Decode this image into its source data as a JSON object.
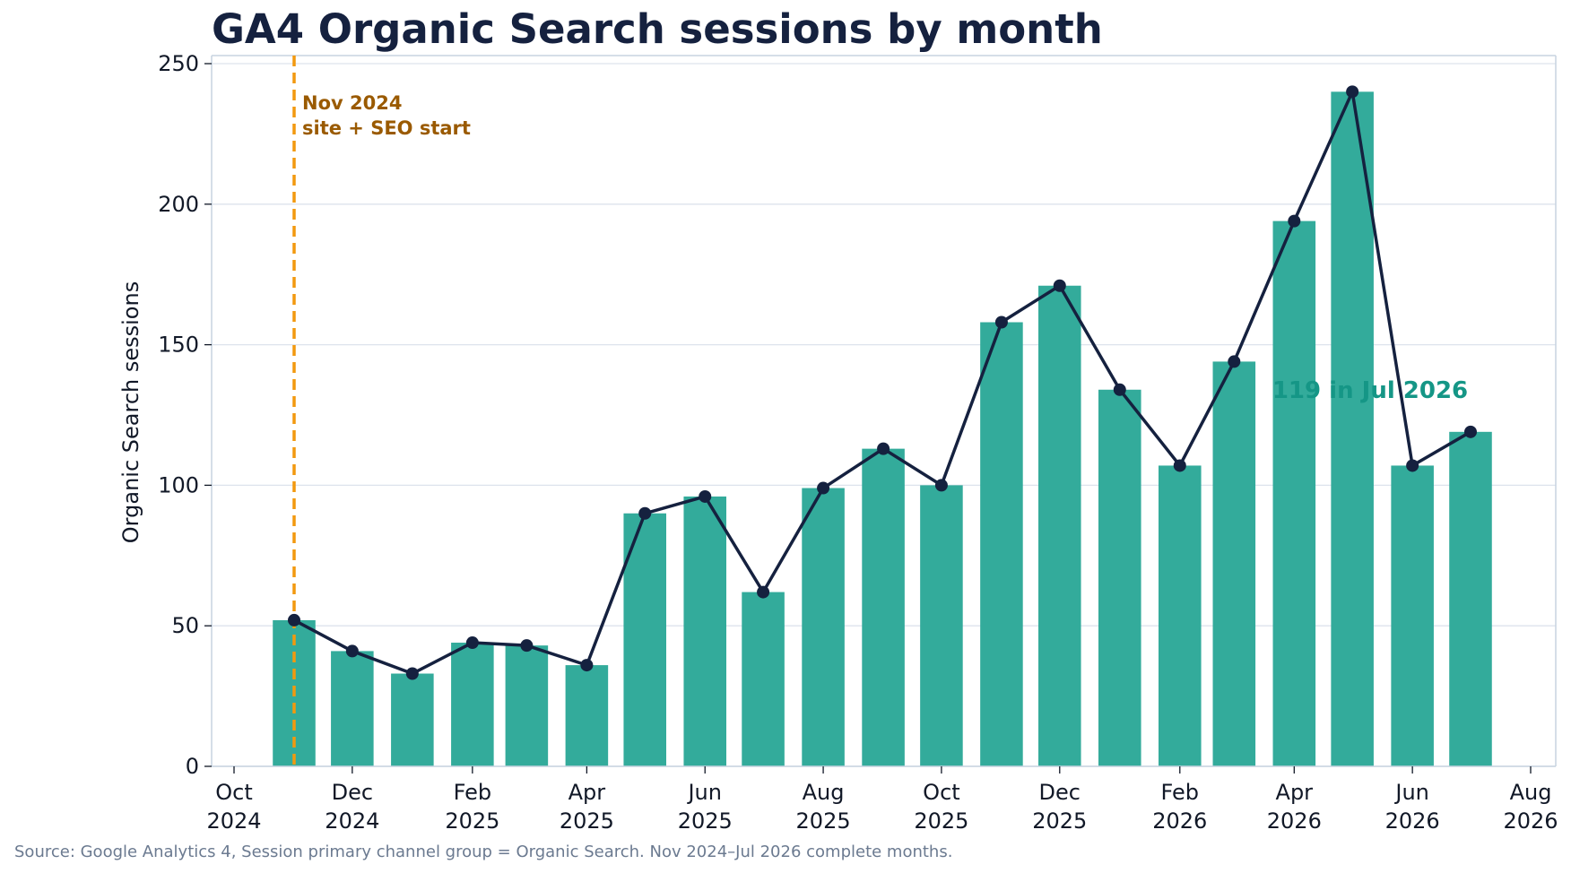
{
  "title": "GA4 Organic Search sessions by month",
  "source_note": "Source: Google Analytics 4, Session primary channel group = Organic Search. Nov 2024–Jul 2026 complete months.",
  "colors": {
    "bar": "#33ab9b",
    "line": "#15213f",
    "start_line": "#f2990f",
    "start_text": "#9a5a00",
    "latest_text": "#159686",
    "grid": "#dde3ec",
    "axes": "#c7d3e0"
  },
  "chart_data": {
    "type": "bar",
    "title": "GA4 Organic Search sessions by month",
    "xlabel": "",
    "ylabel": "Organic Search sessions",
    "ylim": [
      0,
      250
    ],
    "yticks": [
      0,
      50,
      100,
      150,
      200,
      250
    ],
    "xlim": [
      "2024-10-01",
      "2026-08-01"
    ],
    "xticks": [
      {
        "date": "2024-10-01",
        "month": "Oct",
        "year": "2024"
      },
      {
        "date": "2024-12-01",
        "month": "Dec",
        "year": "2024"
      },
      {
        "date": "2025-02-01",
        "month": "Feb",
        "year": "2025"
      },
      {
        "date": "2025-04-01",
        "month": "Apr",
        "year": "2025"
      },
      {
        "date": "2025-06-01",
        "month": "Jun",
        "year": "2025"
      },
      {
        "date": "2025-08-01",
        "month": "Aug",
        "year": "2025"
      },
      {
        "date": "2025-10-01",
        "month": "Oct",
        "year": "2025"
      },
      {
        "date": "2025-12-01",
        "month": "Dec",
        "year": "2025"
      },
      {
        "date": "2026-02-01",
        "month": "Feb",
        "year": "2026"
      },
      {
        "date": "2026-04-01",
        "month": "Apr",
        "year": "2026"
      },
      {
        "date": "2026-06-01",
        "month": "Jun",
        "year": "2026"
      },
      {
        "date": "2026-08-01",
        "month": "Aug",
        "year": "2026"
      }
    ],
    "x": [
      "2024-11-01",
      "2024-12-01",
      "2025-01-01",
      "2025-02-01",
      "2025-03-01",
      "2025-04-01",
      "2025-05-01",
      "2025-06-01",
      "2025-07-01",
      "2025-08-01",
      "2025-09-01",
      "2025-10-01",
      "2025-11-01",
      "2025-12-01",
      "2026-01-01",
      "2026-02-01",
      "2026-03-01",
      "2026-04-01",
      "2026-05-01",
      "2026-06-01",
      "2026-07-01"
    ],
    "values": [
      52,
      41,
      33,
      44,
      43,
      36,
      90,
      96,
      62,
      99,
      113,
      100,
      158,
      171,
      134,
      107,
      144,
      194,
      240,
      107,
      119
    ],
    "overlay": "line with markers",
    "grid": true,
    "annotations": {
      "start_marker": {
        "date": "2024-11-01",
        "lines": [
          "Nov 2024",
          "site + SEO start"
        ]
      },
      "latest": {
        "text": "119 in Jul 2026"
      }
    }
  }
}
